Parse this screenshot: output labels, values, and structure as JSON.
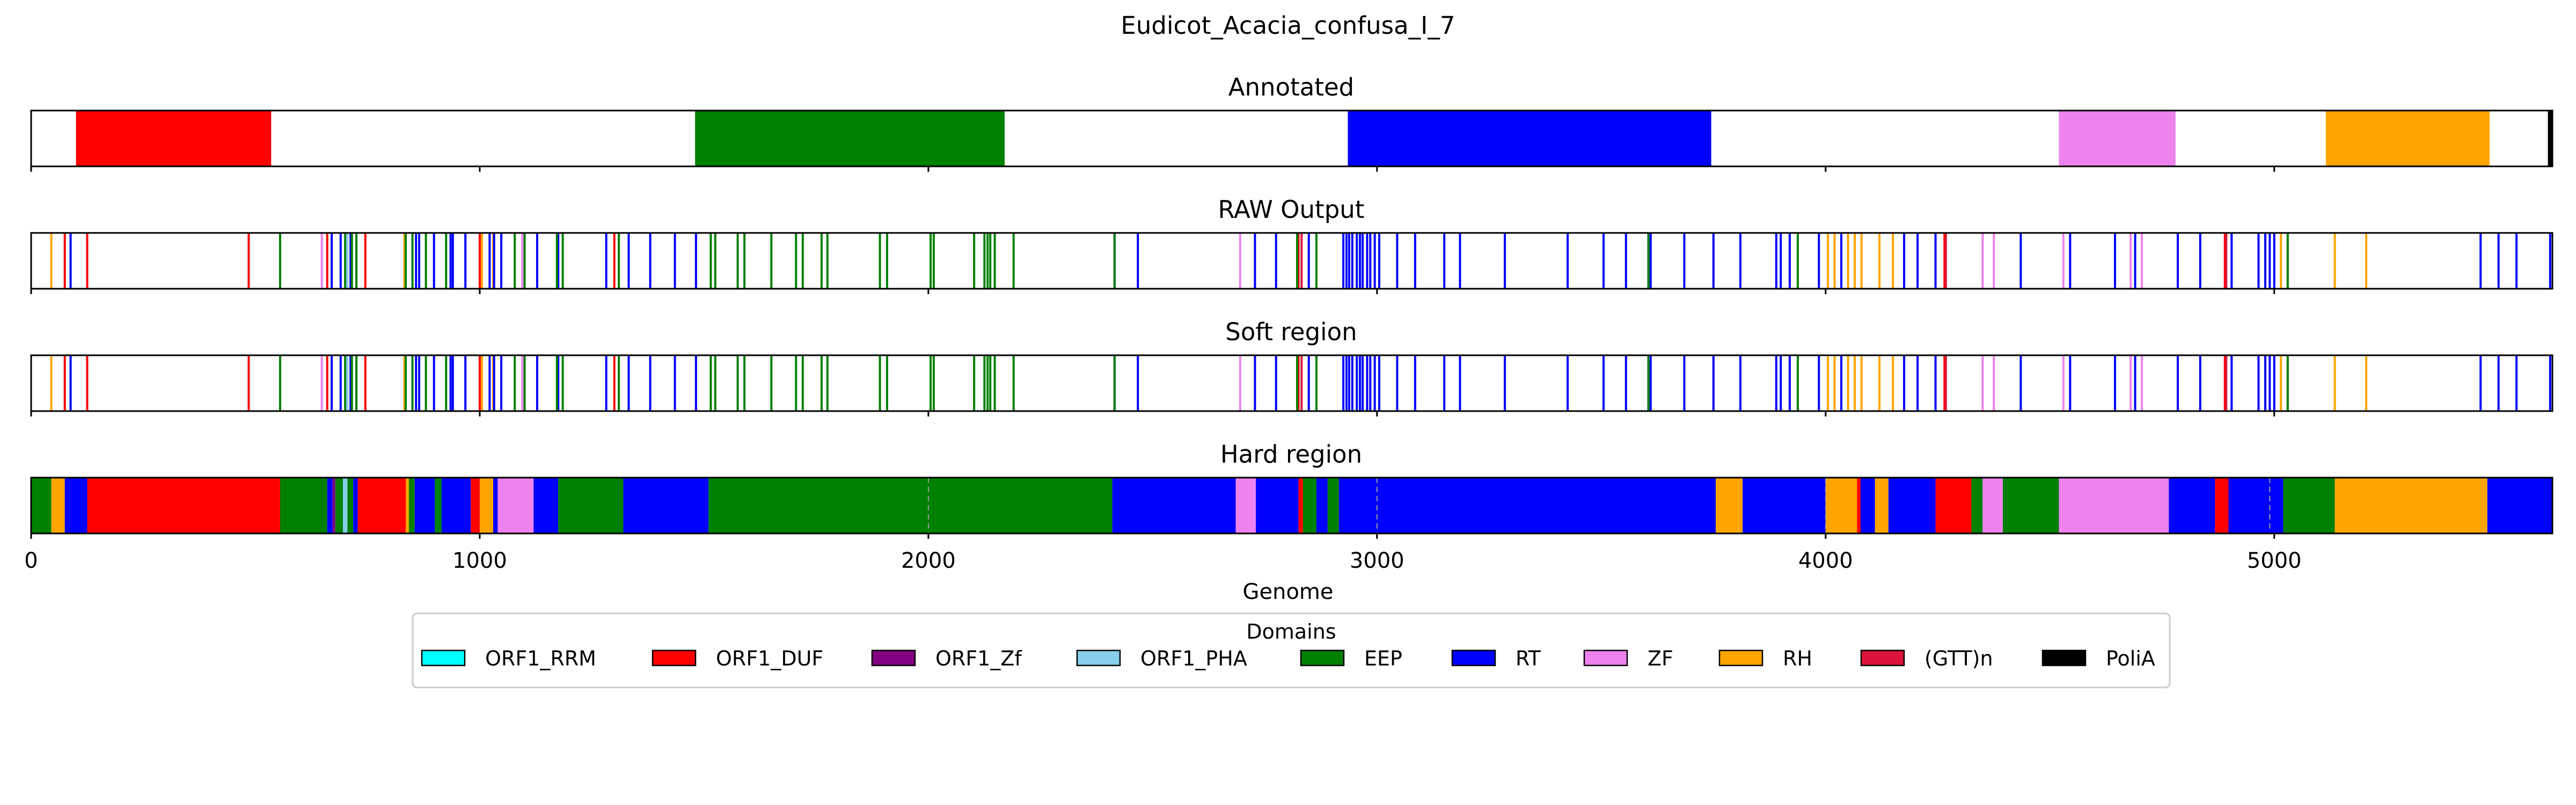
{
  "chart_data": {
    "type": "track",
    "title": "Eudicot_Acacia_confusa_I_7",
    "xlabel": "Genome",
    "xlim": [
      0,
      5620
    ],
    "xticks": [
      0,
      1000,
      2000,
      3000,
      4000,
      5000
    ],
    "domain_colors": {
      "ORF1_RRM": "#00ffff",
      "ORF1_DUF": "#ff0000",
      "ORF1_Zf": "#800080",
      "ORF1_PHA": "#87ceeb",
      "EEP": "#008000",
      "RT": "#0000ff",
      "ZF": "#ee82ee",
      "RH": "#ffa500",
      "(GTT)n": "#dc143c",
      "PoliA": "#000000"
    },
    "legend": {
      "title": "Domains",
      "placement": "bottom-center",
      "items": [
        "ORF1_RRM",
        "ORF1_DUF",
        "ORF1_Zf",
        "ORF1_PHA",
        "EEP",
        "RT",
        "ZF",
        "RH",
        "(GTT)n",
        "PoliA"
      ]
    },
    "panels": [
      {
        "title": "Annotated",
        "kind": "segments",
        "segments": [
          {
            "domain": "ORF1_DUF",
            "start": 100,
            "end": 535
          },
          {
            "domain": "EEP",
            "start": 1480,
            "end": 2170
          },
          {
            "domain": "RT",
            "start": 2935,
            "end": 3745
          },
          {
            "domain": "ZF",
            "start": 4520,
            "end": 4780
          },
          {
            "domain": "RH",
            "start": 5115,
            "end": 5480
          },
          {
            "domain": "PoliA",
            "start": 5610,
            "end": 5620
          }
        ]
      },
      {
        "title": "RAW Output",
        "kind": "lines",
        "lines": [
          {
            "domain": "RH",
            "x": [
              45,
              832,
              1005,
              1030,
              3750,
              4005,
              4020,
              4050,
              4065,
              4080,
              4120,
              4150,
              5015,
              5030,
              5135,
              5205
            ]
          },
          {
            "domain": "ORF1_DUF",
            "x": [
              75,
              125,
              485,
              660,
              745,
              1000,
              1300,
              2825,
              4265,
              4890
            ]
          },
          {
            "domain": "(GTT)n",
            "x": [
              2832,
              4268,
              4893
            ]
          },
          {
            "domain": "RT",
            "x": [
              88,
              670,
              690,
              712,
              858,
              865,
              898,
              935,
              940,
              968,
              1022,
              1032,
              1048,
              1128,
              1175,
              1282,
              1332,
              1380,
              1435,
              1482,
              2415,
              2467,
              2728,
              2775,
              2848,
              2925,
              2932,
              2938,
              2945,
              2955,
              2962,
              2968,
              2978,
              2985,
              2995,
              3005,
              3045,
              3085,
              3150,
              3185,
              3285,
              3425,
              3505,
              3555,
              3605,
              3610,
              3685,
              3750,
              3810,
              3890,
              3900,
              3920,
              3985,
              4035,
              4175,
              4205,
              4245,
              4435,
              4545,
              4645,
              4690,
              4785,
              4835,
              4905,
              4965,
              4980,
              4990,
              5000,
              5460,
              5500,
              5540,
              5615
            ]
          },
          {
            "domain": "EEP",
            "x": [
              555,
              700,
              715,
              725,
              835,
              850,
              880,
              925,
              1078,
              1100,
              1172,
              1185,
              1310,
              1515,
              1525,
              1575,
              1590,
              1650,
              1705,
              1720,
              1762,
              1775,
              1892,
              1908,
              2005,
              2012,
              2102,
              2125,
              2132,
              2138,
              2148,
              2190,
              2415,
              2822,
              2865,
              3605,
              3938,
              5030
            ]
          },
          {
            "domain": "ORF1_PHA",
            "x": [
              705
            ]
          },
          {
            "domain": "ZF",
            "x": [
              648,
              1095,
              2695,
              4350,
              4375,
              4530,
              4680,
              4705
            ]
          }
        ]
      },
      {
        "title": "Soft region",
        "kind": "lines",
        "lines": [
          {
            "domain": "RH",
            "x": [
              45,
              832,
              1005,
              1030,
              3750,
              4005,
              4020,
              4050,
              4065,
              4080,
              4120,
              4150,
              5015,
              5030,
              5135,
              5205
            ]
          },
          {
            "domain": "ORF1_DUF",
            "x": [
              75,
              125,
              485,
              660,
              745,
              1000,
              1300,
              2825,
              4265,
              4890
            ]
          },
          {
            "domain": "(GTT)n",
            "x": [
              2832,
              4268,
              4893
            ]
          },
          {
            "domain": "RT",
            "x": [
              88,
              670,
              690,
              712,
              858,
              865,
              898,
              935,
              940,
              968,
              1022,
              1032,
              1048,
              1128,
              1175,
              1282,
              1332,
              1380,
              1435,
              1482,
              2415,
              2467,
              2728,
              2775,
              2848,
              2925,
              2932,
              2938,
              2945,
              2955,
              2962,
              2968,
              2978,
              2985,
              2995,
              3005,
              3045,
              3085,
              3150,
              3185,
              3285,
              3425,
              3505,
              3555,
              3605,
              3610,
              3685,
              3750,
              3810,
              3890,
              3900,
              3920,
              3985,
              4035,
              4175,
              4205,
              4245,
              4435,
              4545,
              4645,
              4690,
              4785,
              4835,
              4905,
              4965,
              4980,
              4990,
              5000,
              5460,
              5500,
              5540,
              5615
            ]
          },
          {
            "domain": "EEP",
            "x": [
              555,
              700,
              715,
              725,
              835,
              850,
              880,
              925,
              1078,
              1100,
              1172,
              1185,
              1310,
              1515,
              1525,
              1575,
              1590,
              1650,
              1705,
              1720,
              1762,
              1775,
              1892,
              1908,
              2005,
              2012,
              2102,
              2125,
              2132,
              2138,
              2148,
              2190,
              2415,
              2822,
              2865,
              3605,
              3938,
              5030
            ]
          },
          {
            "domain": "ORF1_PHA",
            "x": [
              705
            ]
          },
          {
            "domain": "ZF",
            "x": [
              648,
              1095,
              2695,
              4350,
              4375,
              4530,
              4680,
              4705
            ]
          }
        ]
      },
      {
        "title": "Hard region",
        "kind": "segments",
        "segments": [
          {
            "domain": "EEP",
            "start": 0,
            "end": 45
          },
          {
            "domain": "RH",
            "start": 45,
            "end": 75
          },
          {
            "domain": "RT",
            "start": 75,
            "end": 125
          },
          {
            "domain": "ORF1_DUF",
            "start": 125,
            "end": 555
          },
          {
            "domain": "EEP",
            "start": 555,
            "end": 660
          },
          {
            "domain": "RT",
            "start": 660,
            "end": 672
          },
          {
            "domain": "ORF1_Zf",
            "start": 672,
            "end": 678
          },
          {
            "domain": "EEP",
            "start": 678,
            "end": 695
          },
          {
            "domain": "ORF1_PHA",
            "start": 695,
            "end": 705
          },
          {
            "domain": "EEP",
            "start": 705,
            "end": 718
          },
          {
            "domain": "RT",
            "start": 718,
            "end": 728
          },
          {
            "domain": "ORF1_DUF",
            "start": 728,
            "end": 835
          },
          {
            "domain": "RH",
            "start": 835,
            "end": 842
          },
          {
            "domain": "EEP",
            "start": 842,
            "end": 855
          },
          {
            "domain": "RT",
            "start": 855,
            "end": 900
          },
          {
            "domain": "EEP",
            "start": 900,
            "end": 915
          },
          {
            "domain": "RT",
            "start": 915,
            "end": 980
          },
          {
            "domain": "ORF1_DUF",
            "start": 980,
            "end": 1000
          },
          {
            "domain": "RH",
            "start": 1000,
            "end": 1030
          },
          {
            "domain": "RT",
            "start": 1030,
            "end": 1040
          },
          {
            "domain": "ZF",
            "start": 1040,
            "end": 1120
          },
          {
            "domain": "RT",
            "start": 1120,
            "end": 1175
          },
          {
            "domain": "EEP",
            "start": 1175,
            "end": 1320
          },
          {
            "domain": "RT",
            "start": 1320,
            "end": 1510
          },
          {
            "domain": "EEP",
            "start": 1510,
            "end": 2410
          },
          {
            "domain": "RT",
            "start": 2410,
            "end": 2685
          },
          {
            "domain": "ZF",
            "start": 2685,
            "end": 2730
          },
          {
            "domain": "RT",
            "start": 2730,
            "end": 2825
          },
          {
            "domain": "ORF1_DUF",
            "start": 2825,
            "end": 2835
          },
          {
            "domain": "EEP",
            "start": 2835,
            "end": 2865
          },
          {
            "domain": "RT",
            "start": 2865,
            "end": 2890
          },
          {
            "domain": "EEP",
            "start": 2890,
            "end": 2915
          },
          {
            "domain": "RT",
            "start": 2915,
            "end": 3755
          },
          {
            "domain": "RH",
            "start": 3755,
            "end": 3815
          },
          {
            "domain": "RT",
            "start": 3815,
            "end": 4000
          },
          {
            "domain": "RH",
            "start": 4000,
            "end": 4070
          },
          {
            "domain": "ORF1_DUF",
            "start": 4070,
            "end": 4078
          },
          {
            "domain": "RT",
            "start": 4078,
            "end": 4110
          },
          {
            "domain": "RH",
            "start": 4110,
            "end": 4140
          },
          {
            "domain": "RT",
            "start": 4140,
            "end": 4245
          },
          {
            "domain": "ORF1_DUF",
            "start": 4245,
            "end": 4325
          },
          {
            "domain": "EEP",
            "start": 4325,
            "end": 4350
          },
          {
            "domain": "ZF",
            "start": 4350,
            "end": 4395
          },
          {
            "domain": "EEP",
            "start": 4395,
            "end": 4520
          },
          {
            "domain": "ZF",
            "start": 4520,
            "end": 4765
          },
          {
            "domain": "RT",
            "start": 4765,
            "end": 4868
          },
          {
            "domain": "ORF1_DUF",
            "start": 4868,
            "end": 4898
          },
          {
            "domain": "RT",
            "start": 4898,
            "end": 5020
          },
          {
            "domain": "EEP",
            "start": 5020,
            "end": 5135
          },
          {
            "domain": "RH",
            "start": 5135,
            "end": 5475
          },
          {
            "domain": "RT",
            "start": 5475,
            "end": 5620
          }
        ],
        "dashed_lines": [
          2000,
          3000,
          4000,
          4990
        ]
      }
    ]
  }
}
